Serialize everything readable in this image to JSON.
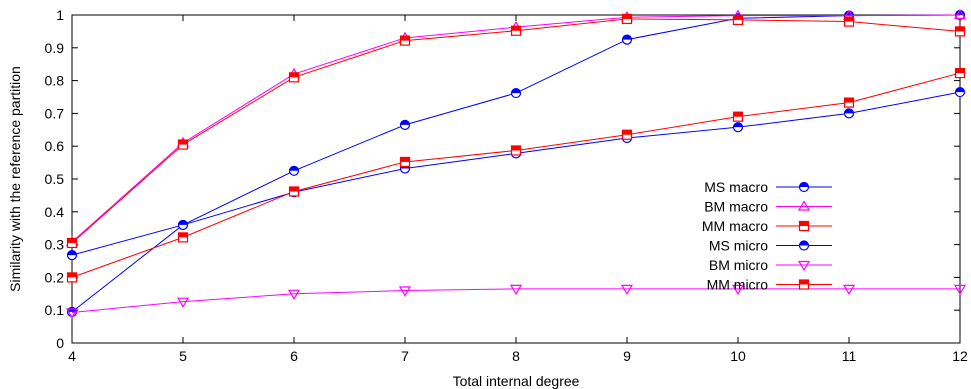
{
  "chart_data": {
    "type": "line",
    "xlabel": "Total internal degree",
    "ylabel": "Similarity with the reference partition",
    "xlim": [
      4,
      12
    ],
    "ylim": [
      0,
      1
    ],
    "xticks": [
      4,
      5,
      6,
      7,
      8,
      9,
      10,
      11,
      12
    ],
    "yticks": [
      0,
      0.1,
      0.2,
      0.3,
      0.4,
      0.5,
      0.6,
      0.7,
      0.8,
      0.9,
      1
    ],
    "grid": false,
    "legend_position": "right-center",
    "x": [
      4,
      5,
      6,
      7,
      8,
      9,
      10,
      11,
      12
    ],
    "series": [
      {
        "name": "MS macro",
        "color": "#0000ff",
        "marker": "half-filled-circle",
        "values": [
          0.095,
          0.36,
          0.525,
          0.665,
          0.762,
          0.925,
          0.99,
          0.998,
          1.0
        ]
      },
      {
        "name": "BM macro",
        "color": "#ff00ff",
        "marker": "triangle-up",
        "values": [
          0.308,
          0.61,
          0.82,
          0.93,
          0.963,
          0.993,
          0.998,
          0.998,
          1.0
        ]
      },
      {
        "name": "MM macro",
        "color": "#ff0000",
        "marker": "half-filled-square",
        "values": [
          0.305,
          0.605,
          0.81,
          0.922,
          0.952,
          0.988,
          0.985,
          0.98,
          0.95
        ]
      },
      {
        "name": "MS micro",
        "color": "#0000ff",
        "marker": "half-filled-circle",
        "values": [
          0.268,
          0.36,
          0.46,
          0.532,
          0.578,
          0.625,
          0.658,
          0.7,
          0.765
        ]
      },
      {
        "name": "BM micro",
        "color": "#ff00ff",
        "marker": "triangle-down",
        "values": [
          0.093,
          0.126,
          0.15,
          0.16,
          0.165,
          0.165,
          0.165,
          0.165,
          0.165
        ]
      },
      {
        "name": "MM micro",
        "color": "#ff0000",
        "marker": "half-filled-square",
        "values": [
          0.2,
          0.322,
          0.462,
          0.552,
          0.587,
          0.635,
          0.69,
          0.733,
          0.823
        ]
      }
    ]
  }
}
